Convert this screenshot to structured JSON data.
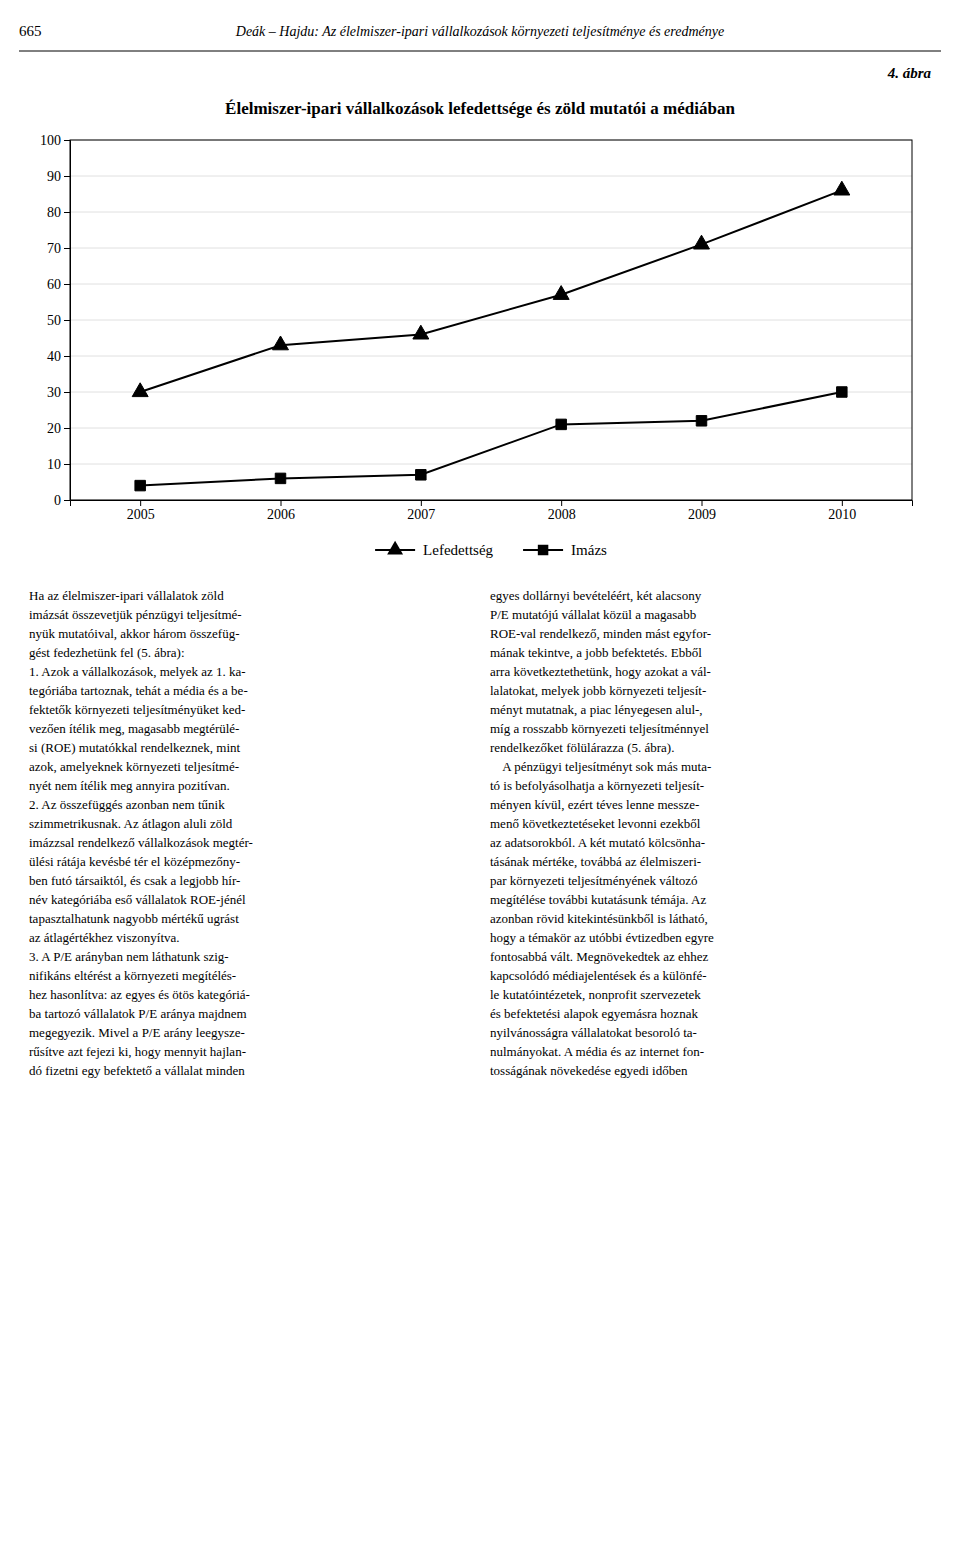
{
  "page_number": "665",
  "header_text": "Deák – Hajdu: Az élelmiszer-ipari vállalkozások környezeti teljesítménye és eredménye",
  "figure_label": "4. ábra",
  "chart_data": {
    "type": "line",
    "title": "Élelmiszer-ipari vállalkozások lefedettsége és zöld mutatói a médiában",
    "x": [
      2005,
      2006,
      2007,
      2008,
      2009,
      2010
    ],
    "xlim": [
      2004.5,
      2010.5
    ],
    "xticks": [
      2005,
      2006,
      2007,
      2008,
      2009,
      2010
    ],
    "ylim": [
      0,
      100
    ],
    "yticks": [
      0,
      10,
      20,
      30,
      40,
      50,
      60,
      70,
      80,
      90,
      100
    ],
    "grid": true,
    "legend": "bottom",
    "series": [
      {
        "name": "Lefedettség",
        "color": "#000000",
        "marker": "triangle",
        "values": [
          30,
          43,
          46,
          57,
          71,
          86
        ]
      },
      {
        "name": "Imázs",
        "color": "#000000",
        "marker": "square",
        "values": [
          4,
          6,
          7,
          21,
          22,
          30
        ]
      }
    ]
  },
  "body_text_left": [
    "Ha az élelmiszer-ipari vállalatok zöld",
    "imázsát összevetjük pénzügyi teljesítmé-",
    "nyük mutatóival, akkor három összefüg-",
    "gést fedezhetünk fel (5. ábra):",
    "1. Azok a vállalkozások, melyek az 1. ka-",
    "tegóriába tartoznak, tehát a média és a be-",
    "fektetők környezeti teljesítményüket ked-",
    "vezően ítélik meg, magasabb megtérülé-",
    "si (ROE) mutatókkal rendelkeznek, mint",
    "azok, amelyeknek környezeti teljesítmé-",
    "nyét nem ítélik meg annyira pozitívan.",
    "2. Az összefüggés azonban nem tűnik",
    "szimmetrikusnak. Az átlagon aluli zöld",
    "imázzsal rendelkező vállalkozások megtér-",
    "ülési rátája kevésbé tér el középmezőny-",
    "ben futó társaiktól, és csak a legjobb hír-",
    "név kategóriába eső vállalatok ROE-jénél",
    "tapasztalhatunk nagyobb mértékű ugrást",
    "az átlagértékhez viszonyítva.",
    "3. A P/E arányban nem láthatunk szig-",
    "nifikáns eltérést a környezeti megítélés-",
    "hez hasonlítva: az egyes és ötös kategóriá-",
    "ba tartozó vállalatok P/E aránya majdnem",
    "megegyezik. Mivel a P/E arány leegysze-",
    "rűsítve azt fejezi ki, hogy mennyit hajlan-",
    "dó fizetni egy befektető a vállalat minden"
  ],
  "body_text_right": [
    "egyes dollárnyi bevételéért, két alacsony",
    "P/E mutatójú vállalat közül a magasabb",
    "ROE-val rendelkező, minden mást egyfor-",
    "mának tekintve, a jobb befektetés. Ebből",
    "arra következtethetünk, hogy azokat a vál-",
    "lalatokat, melyek jobb környezeti teljesít-",
    "ményt mutatnak, a piac lényegesen alul-,",
    "míg a rosszabb környezeti teljesítménnyel",
    "rendelkezőket fölülárazza (5. ábra).",
    "    A pénzügyi teljesítményt sok más muta-",
    "tó is befolyásolhatja a környezeti teljesít-",
    "ményen kívül, ezért téves lenne messze-",
    "menő következtetéseket levonni ezekből",
    "az adatsorokból. A két mutató kölcsönha-",
    "tásának mértéke, továbbá az élelmiszeri-",
    "par környezeti teljesítményének változó",
    "megítélése további kutatásunk témája. Az",
    "azonban rövid kitekintésünkből is látható,",
    "hogy a témakör az utóbbi évtizedben egyre",
    "fontosabbá vált. Megnövekedtek az ehhez",
    "kapcsolódó médiajelentések és a különfé-",
    "le kutatóintézetek, nonprofit szervezetek",
    "és befektetési alapok egyemásra hoznak",
    "nyilvánosságra vállalatokat besoroló ta-",
    "nulmányokat. A média és az internet fon-",
    "tosságának növekedése egyedi időben"
  ]
}
